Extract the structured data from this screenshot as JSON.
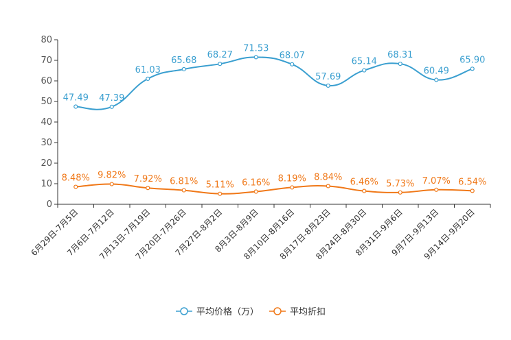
{
  "chart_data": {
    "type": "line",
    "title": "",
    "xlabel": "",
    "ylabel": "",
    "ylim": [
      0,
      80
    ],
    "yticks": [
      0,
      10,
      20,
      30,
      40,
      50,
      60,
      70,
      80
    ],
    "grid": false,
    "legend_position": "bottom-center",
    "categories": [
      "6月29日-7月5日",
      "7月6日-7月12日",
      "7月13日-7月19日",
      "7月20日-7月26日",
      "7月27日-8月2日",
      "8月3日-8月9日",
      "8月10日-8月16日",
      "8月17日-8月23日",
      "8月24日-8月30日",
      "8月31日-9月6日",
      "9月7日-9月13日",
      "9月14日-9月20日"
    ],
    "series": [
      {
        "name": "平均价格（万）",
        "color": "#3a9fd0",
        "values": [
          47.49,
          47.39,
          61.03,
          65.68,
          68.27,
          71.53,
          68.07,
          57.69,
          65.14,
          68.31,
          60.49,
          65.9
        ],
        "labels": [
          "47.49",
          "47.39",
          "61.03",
          "65.68",
          "68.27",
          "71.53",
          "68.07",
          "57.69",
          "65.14",
          "68.31",
          "60.49",
          "65.90"
        ]
      },
      {
        "name": "平均折扣",
        "color": "#f07818",
        "values": [
          8.48,
          9.82,
          7.92,
          6.81,
          5.11,
          6.16,
          8.19,
          8.84,
          6.46,
          5.73,
          7.07,
          6.54
        ],
        "labels": [
          "8.48%",
          "9.82%",
          "7.92%",
          "6.81%",
          "5.11%",
          "6.16%",
          "8.19%",
          "8.84%",
          "6.46%",
          "5.73%",
          "7.07%",
          "6.54%"
        ]
      }
    ]
  }
}
